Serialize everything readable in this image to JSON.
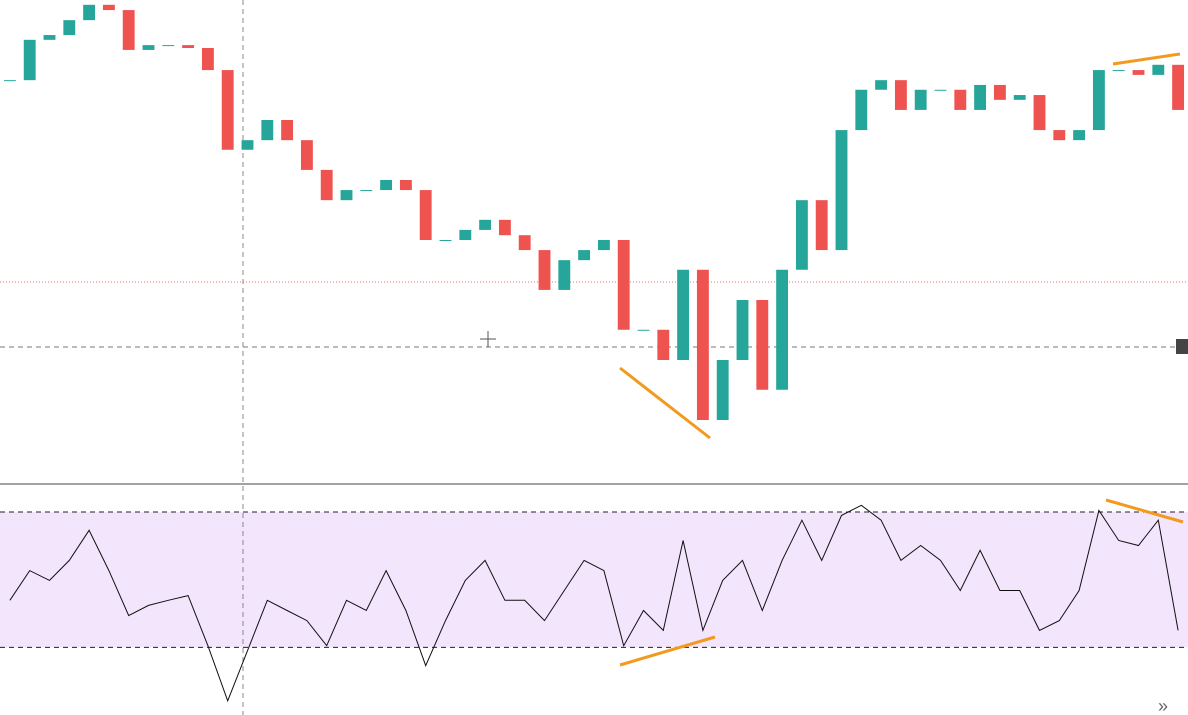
{
  "chart_data": [
    {
      "type": "candlestick",
      "up_color": "#26a69a",
      "down_color": "#ef5350",
      "ylim": [
        0,
        100
      ],
      "values": [
        83.3,
        91.7,
        92.7,
        95.8,
        99.0,
        97.9,
        89.6,
        90.6,
        90.6,
        90.0,
        85.4,
        68.8,
        70.8,
        75.0,
        70.8,
        64.6,
        58.3,
        60.4,
        60.4,
        62.5,
        60.4,
        50.0,
        50.0,
        52.1,
        54.2,
        51.0,
        47.9,
        39.6,
        45.8,
        47.9,
        50.0,
        31.3,
        31.3,
        25.0,
        43.8,
        12.5,
        25.0,
        37.5,
        18.8,
        43.8,
        58.3,
        47.9,
        72.9,
        81.3,
        83.3,
        77.1,
        81.3,
        81.3,
        77.1,
        82.3,
        79.2,
        80.2,
        72.9,
        70.8,
        72.9,
        85.4,
        85.4,
        84.4,
        86.5,
        77.1
      ]
    },
    {
      "type": "line",
      "color": "#111111",
      "band_color": "#f3e5fc",
      "ylim": [
        10,
        78
      ],
      "bands": [
        30,
        70
      ],
      "values": [
        43.9,
        52.7,
        49.8,
        55.7,
        64.6,
        52.7,
        39.4,
        42.4,
        43.9,
        45.3,
        30.5,
        14.2,
        29.0,
        43.9,
        40.9,
        37.9,
        30.5,
        43.9,
        40.9,
        52.7,
        40.9,
        24.6,
        37.9,
        49.8,
        55.7,
        43.9,
        43.9,
        37.9,
        46.8,
        55.7,
        52.7,
        30.5,
        40.9,
        35.0,
        61.6,
        35.0,
        49.8,
        55.7,
        40.9,
        55.7,
        67.6,
        55.7,
        69.0,
        72.0,
        67.6,
        55.7,
        60.1,
        55.7,
        46.8,
        58.7,
        46.8,
        46.8,
        35.0,
        37.9,
        46.8,
        70.5,
        61.6,
        60.1,
        67.6,
        35.0
      ]
    }
  ],
  "ui": {
    "scroll_button": "»"
  }
}
